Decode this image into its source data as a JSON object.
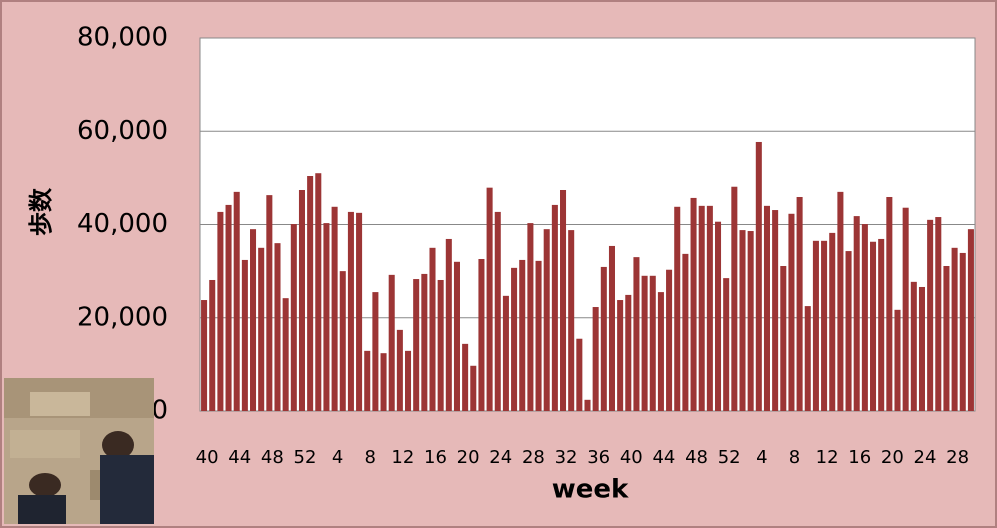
{
  "chart_data": {
    "type": "bar",
    "x_label": "week",
    "y_label": "歩数",
    "categories": [
      "40",
      null,
      null,
      null,
      "44",
      null,
      null,
      null,
      "48",
      null,
      null,
      null,
      "52",
      null,
      null,
      null,
      "4",
      null,
      null,
      null,
      "8",
      null,
      null,
      null,
      "12",
      null,
      null,
      null,
      "16",
      null,
      null,
      null,
      "20",
      null,
      null,
      null,
      "24",
      null,
      null,
      null,
      "28",
      null,
      null,
      null,
      "32",
      null,
      null,
      null,
      "36",
      null,
      null,
      null,
      "40",
      null,
      null,
      null,
      "44",
      null,
      null,
      null,
      "48",
      null,
      null,
      null,
      "52",
      null,
      null,
      null,
      "4",
      null,
      null,
      null,
      "8",
      null,
      null,
      null,
      "12",
      null,
      null,
      null,
      "16",
      null,
      null,
      null,
      "20",
      null,
      null,
      null,
      "24",
      null,
      null,
      null,
      "28",
      null,
      null
    ],
    "values": [
      23800,
      28100,
      42700,
      44200,
      47000,
      32400,
      39000,
      35000,
      46300,
      36000,
      24200,
      40100,
      47400,
      50400,
      51000,
      40300,
      43800,
      30000,
      42700,
      42500,
      12900,
      25500,
      12400,
      29200,
      17400,
      12900,
      28300,
      29400,
      35000,
      28100,
      36900,
      32000,
      14400,
      9700,
      32600,
      47900,
      42700,
      24700,
      30700,
      32400,
      40300,
      32200,
      39000,
      44200,
      47400,
      38800,
      15500,
      2400,
      22300,
      30900,
      35400,
      23800,
      24900,
      33000,
      29000,
      29000,
      25500,
      30300,
      43800,
      33700,
      45700,
      44000,
      44000,
      40600,
      28500,
      48100,
      38800,
      38600,
      57700,
      44000,
      43100,
      31100,
      42300,
      45900,
      22500,
      36500,
      36500,
      38200,
      47000,
      34300,
      41800,
      40100,
      36300,
      36900,
      45900,
      21700,
      43600,
      27700,
      26600,
      41000,
      41600,
      31100,
      35000,
      33900,
      39000
    ],
    "color": "#9c3535",
    "ylim": [
      0,
      80000
    ],
    "yticks": [
      0,
      {
        "value": 20000,
        "label": "20,000"
      },
      {
        "value": 40000,
        "label": "40,000"
      },
      {
        "value": 60000,
        "label": "60,000"
      },
      {
        "value": 80000,
        "label": "80,000"
      }
    ],
    "grid": true
  }
}
